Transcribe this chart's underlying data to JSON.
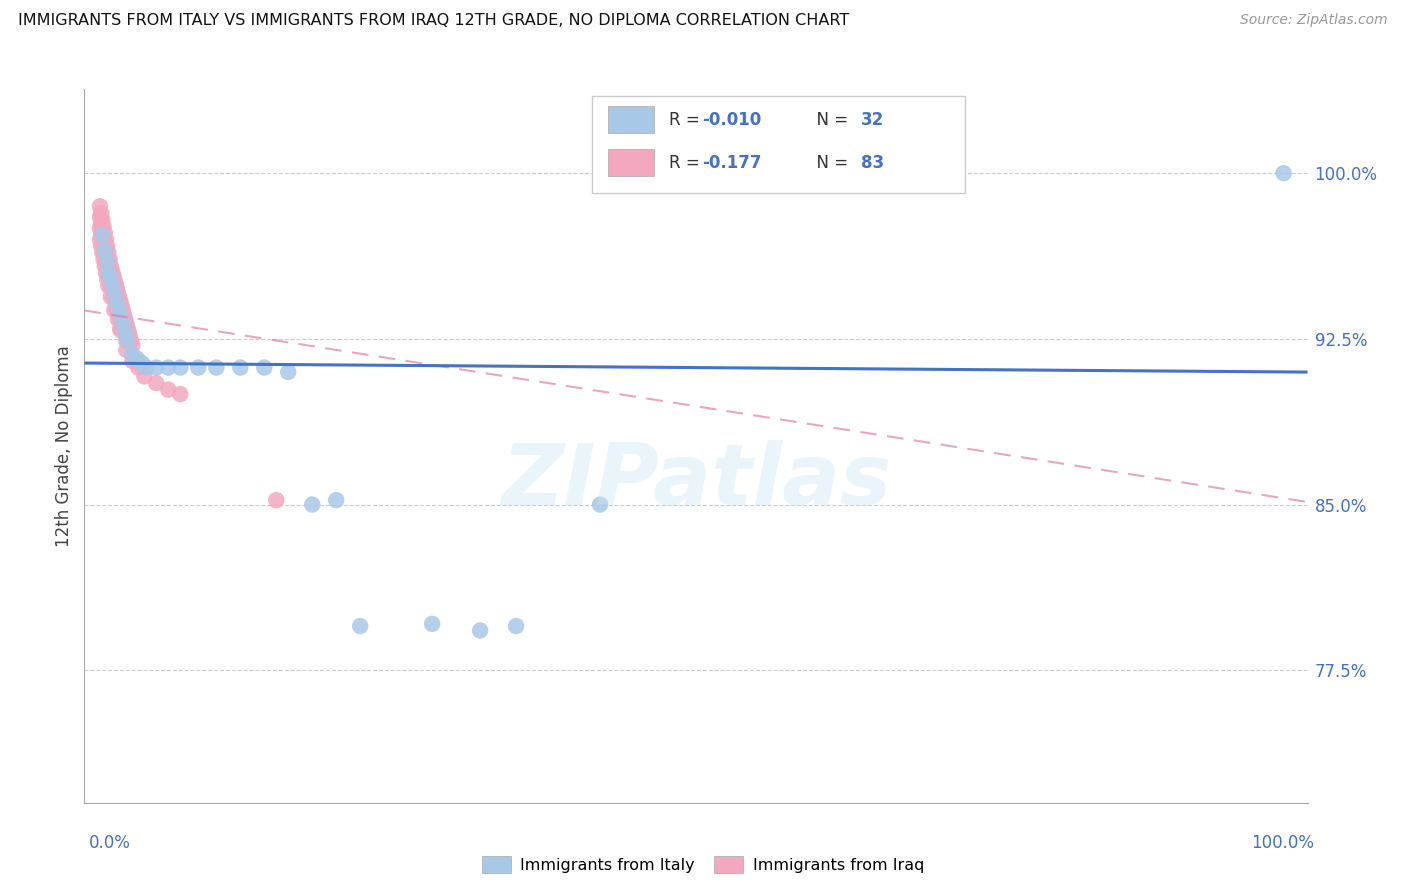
{
  "title": "IMMIGRANTS FROM ITALY VS IMMIGRANTS FROM IRAQ 12TH GRADE, NO DIPLOMA CORRELATION CHART",
  "source": "Source: ZipAtlas.com",
  "ylabel": "12th Grade, No Diploma",
  "color_italy": "#a8c8e8",
  "color_iraq": "#f4a8c0",
  "trendline_italy_color": "#4472C4",
  "trendline_iraq_color": "#e07898",
  "watermark": "ZIPatlas",
  "R_italy": "-0.010",
  "N_italy": "32",
  "R_iraq": "-0.177",
  "N_iraq": "83",
  "ymin": 0.715,
  "ymax": 1.038,
  "xmin": -0.01,
  "xmax": 1.01,
  "ytick_vals": [
    0.775,
    0.85,
    0.925,
    1.0
  ],
  "ytick_labels": [
    "77.5%",
    "85.0%",
    "92.5%",
    "100.0%"
  ],
  "italy_x": [
    0.005,
    0.007,
    0.009,
    0.01,
    0.012,
    0.014,
    0.016,
    0.018,
    0.02,
    0.022,
    0.024,
    0.026,
    0.03,
    0.034,
    0.038,
    0.042,
    0.05,
    0.06,
    0.07,
    0.085,
    0.1,
    0.12,
    0.14,
    0.16,
    0.18,
    0.2,
    0.22,
    0.28,
    0.32,
    0.35,
    0.42,
    0.99
  ],
  "italy_y": [
    0.972,
    0.965,
    0.96,
    0.955,
    0.952,
    0.948,
    0.944,
    0.94,
    0.936,
    0.932,
    0.928,
    0.924,
    0.918,
    0.916,
    0.914,
    0.912,
    0.912,
    0.912,
    0.912,
    0.912,
    0.912,
    0.912,
    0.912,
    0.91,
    0.85,
    0.852,
    0.795,
    0.796,
    0.793,
    0.795,
    0.85,
    1.0
  ],
  "iraq_x": [
    0.003,
    0.004,
    0.005,
    0.006,
    0.007,
    0.008,
    0.009,
    0.01,
    0.011,
    0.012,
    0.013,
    0.014,
    0.015,
    0.016,
    0.017,
    0.018,
    0.019,
    0.02,
    0.021,
    0.022,
    0.023,
    0.024,
    0.025,
    0.026,
    0.027,
    0.028,
    0.029,
    0.03,
    0.003,
    0.004,
    0.005,
    0.006,
    0.007,
    0.008,
    0.009,
    0.01,
    0.011,
    0.012,
    0.013,
    0.014,
    0.015,
    0.016,
    0.017,
    0.018,
    0.02,
    0.022,
    0.025,
    0.003,
    0.004,
    0.005,
    0.006,
    0.007,
    0.008,
    0.009,
    0.01,
    0.012,
    0.014,
    0.016,
    0.018,
    0.02,
    0.025,
    0.03,
    0.035,
    0.04,
    0.05,
    0.06,
    0.07,
    0.003,
    0.004,
    0.005,
    0.006,
    0.007,
    0.008,
    0.009,
    0.01,
    0.012,
    0.015,
    0.02,
    0.025,
    0.035,
    0.15
  ],
  "iraq_y": [
    0.985,
    0.982,
    0.979,
    0.976,
    0.973,
    0.97,
    0.967,
    0.964,
    0.961,
    0.958,
    0.956,
    0.954,
    0.952,
    0.95,
    0.948,
    0.946,
    0.944,
    0.942,
    0.94,
    0.938,
    0.936,
    0.934,
    0.932,
    0.93,
    0.928,
    0.926,
    0.924,
    0.922,
    0.98,
    0.977,
    0.974,
    0.971,
    0.968,
    0.965,
    0.962,
    0.959,
    0.956,
    0.953,
    0.95,
    0.947,
    0.944,
    0.942,
    0.94,
    0.938,
    0.934,
    0.93,
    0.926,
    0.975,
    0.972,
    0.969,
    0.966,
    0.963,
    0.96,
    0.957,
    0.954,
    0.949,
    0.944,
    0.939,
    0.934,
    0.929,
    0.92,
    0.915,
    0.912,
    0.908,
    0.905,
    0.902,
    0.9,
    0.97,
    0.967,
    0.964,
    0.961,
    0.958,
    0.955,
    0.952,
    0.949,
    0.944,
    0.938,
    0.93,
    0.924,
    0.914,
    0.852
  ]
}
